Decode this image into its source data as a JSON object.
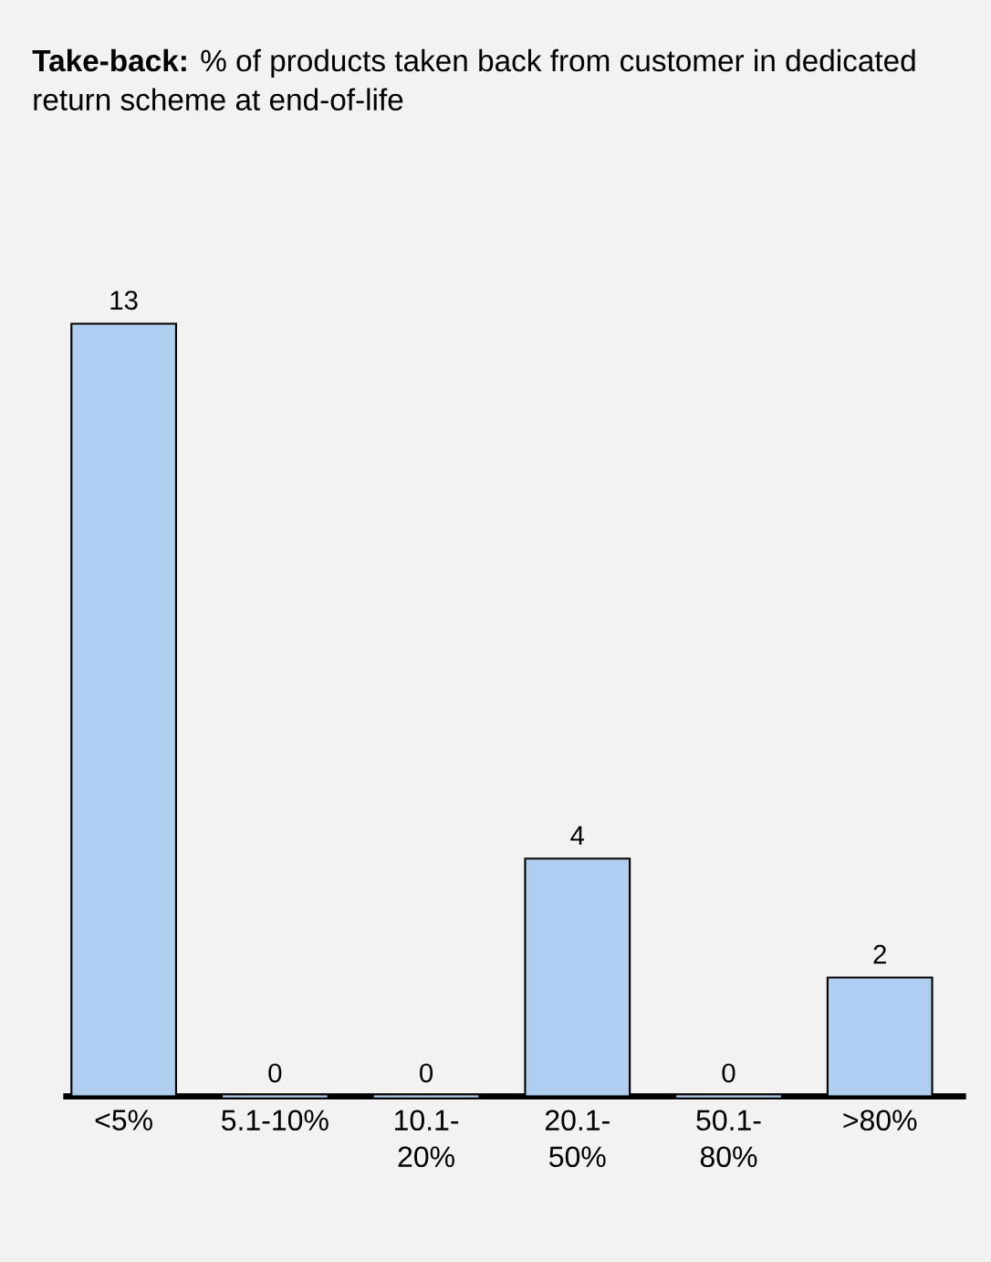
{
  "chart_data": {
    "type": "bar",
    "title": "**Take-back:** % of products taken back from customer in dedicated return scheme at end-of-life",
    "categories": [
      "<5%",
      "5.1-10%",
      "10.1-20%",
      "20.1-50%",
      "50.1-80%",
      ">80%"
    ],
    "values": [
      13,
      0,
      0,
      4,
      0,
      2
    ],
    "color": "#b0cff0",
    "data_labels": true
  }
}
